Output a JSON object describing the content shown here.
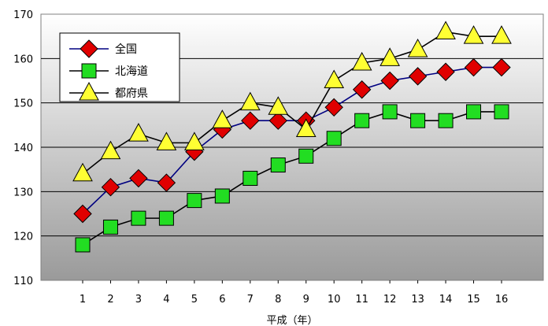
{
  "chart_data": {
    "type": "line",
    "xlabel": "平成（年）",
    "ylabel": "",
    "categories": [
      "1",
      "2",
      "3",
      "4",
      "5",
      "6",
      "7",
      "8",
      "9",
      "10",
      "11",
      "12",
      "13",
      "14",
      "15",
      "16"
    ],
    "ylim": [
      110,
      170
    ],
    "yticks": [
      110,
      120,
      130,
      140,
      150,
      160,
      170
    ],
    "grid": true,
    "legend_position": "top-left",
    "series": [
      {
        "name": "全国",
        "marker": "diamond",
        "line_color": "#000080",
        "marker_color": "#e00000",
        "values": [
          125,
          131,
          133,
          132,
          139,
          144,
          146,
          146,
          146,
          149,
          153,
          155,
          156,
          157,
          158,
          158
        ]
      },
      {
        "name": "北海道",
        "marker": "square",
        "line_color": "#000000",
        "marker_color": "#22dd22",
        "values": [
          118,
          122,
          124,
          124,
          128,
          129,
          133,
          136,
          138,
          142,
          146,
          148,
          146,
          146,
          148,
          148
        ]
      },
      {
        "name": "都府県",
        "marker": "triangle",
        "line_color": "#000000",
        "marker_color": "#ffff33",
        "values": [
          134,
          139,
          143,
          141,
          141,
          146,
          150,
          149,
          144,
          155,
          159,
          160,
          162,
          166,
          165,
          165
        ]
      }
    ]
  }
}
